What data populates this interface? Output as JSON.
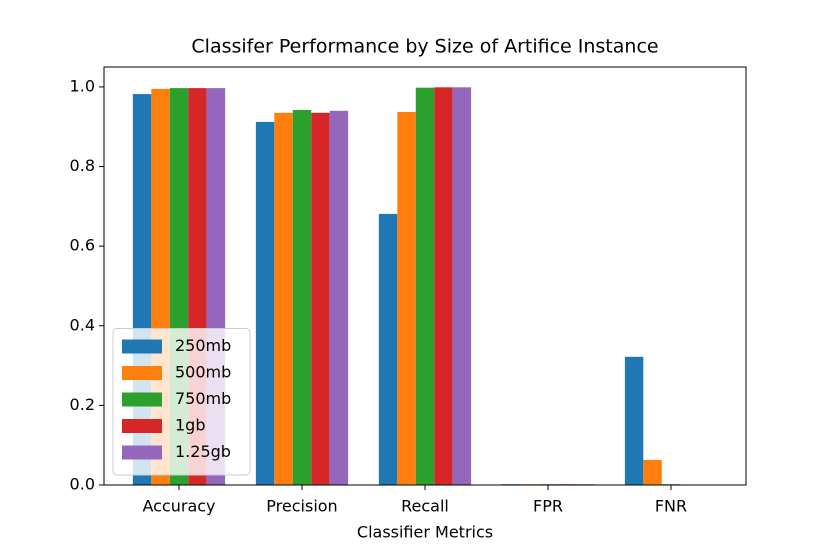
{
  "chart_data": {
    "type": "bar",
    "title": "Classifer Performance by Size of Artifice Instance",
    "x_label": "Classifier Metrics",
    "categories": [
      "Accuracy",
      "Precision",
      "Recall",
      "FPR",
      "FNR"
    ],
    "series": [
      {
        "name": "250mb",
        "color": "#1f77b4",
        "values": [
          0.982,
          0.912,
          0.681,
          0.002,
          0.322
        ]
      },
      {
        "name": "500mb",
        "color": "#ff7f0e",
        "values": [
          0.995,
          0.935,
          0.937,
          0.002,
          0.063
        ]
      },
      {
        "name": "750mb",
        "color": "#2ca02c",
        "values": [
          0.997,
          0.942,
          0.998,
          0.002,
          0.002
        ]
      },
      {
        "name": "1gb",
        "color": "#d62728",
        "values": [
          0.997,
          0.935,
          0.999,
          0.002,
          0.001
        ]
      },
      {
        "name": "1.25gb",
        "color": "#9467bd",
        "values": [
          0.997,
          0.94,
          0.999,
          0.002,
          0.001
        ]
      }
    ],
    "ylim": [
      0,
      1.05
    ],
    "yticks": [
      {
        "value": 0,
        "label": "0.0"
      },
      0.2,
      0.4,
      0.6,
      0.8,
      {
        "value": 1,
        "label": "1.0"
      }
    ],
    "legend": "lower left"
  }
}
